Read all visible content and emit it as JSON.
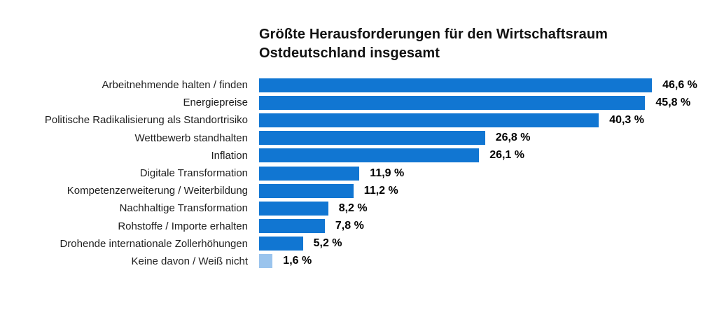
{
  "chart_data": {
    "type": "bar",
    "orientation": "horizontal",
    "title": "Größte Herausforderungen für den Wirtschaftsraum Ostdeutschland insgesamt",
    "categories": [
      "Arbeitnehmende halten / finden",
      "Energiepreise",
      "Politische Radikalisierung als Standortrisiko",
      "Wettbewerb standhalten",
      "Inflation",
      "Digitale Transformation",
      "Kompetenzerweiterung / Weiterbildung",
      "Nachhaltige Transformation",
      "Rohstoffe / Importe erhalten",
      "Drohende internationale Zollerhöhungen",
      "Keine davon / Weiß nicht"
    ],
    "values": [
      46.6,
      45.8,
      40.3,
      26.8,
      26.1,
      11.9,
      11.2,
      8.2,
      7.8,
      5.2,
      1.6
    ],
    "value_labels": [
      "46,6 %",
      "45,8 %",
      "40,3 %",
      "26,8 %",
      "26,1 %",
      "11,9 %",
      "11,2 %",
      "8,2 %",
      "7,8 %",
      "5,2 %",
      "1,6 %"
    ],
    "xlim": [
      0,
      50
    ],
    "grid": false,
    "legend": "none",
    "colors": {
      "bar": "#1176d2",
      "muted_bar": "#9ac4ed",
      "title_text": "#111111",
      "label_text": "#1e1e1e",
      "value_text": "#000000",
      "background": "#ffffff"
    },
    "muted_indices": [
      10
    ]
  }
}
